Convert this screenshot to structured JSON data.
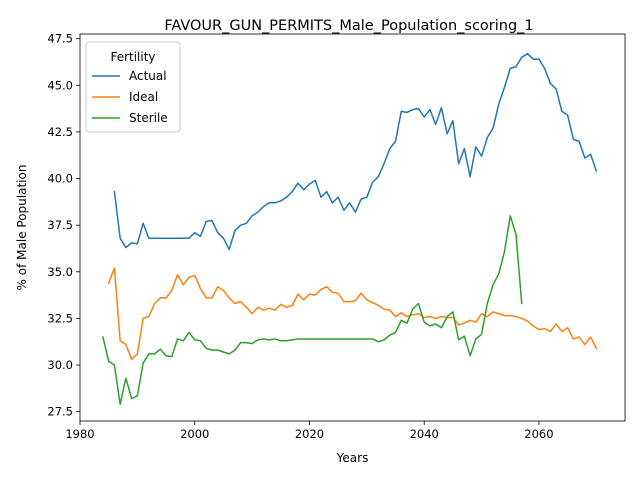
{
  "chart_data": {
    "type": "line",
    "title": "FAVOUR_GUN_PERMITS_Male_Population_scoring_1",
    "xlabel": "Years",
    "ylabel": "% of Male Population",
    "xlim": [
      1980,
      2075
    ],
    "ylim": [
      27.0,
      47.75
    ],
    "xticks": [
      1980,
      2000,
      2020,
      2040,
      2060
    ],
    "xtick_labels": [
      "1980",
      "2000",
      "2020",
      "2040",
      "2060"
    ],
    "yticks": [
      27.5,
      30.0,
      32.5,
      35.0,
      37.5,
      40.0,
      42.5,
      45.0,
      47.5
    ],
    "ytick_labels": [
      "27.5",
      "30.0",
      "32.5",
      "35.0",
      "37.5",
      "40.0",
      "42.5",
      "45.0",
      "47.5"
    ],
    "grid": false,
    "legend": {
      "title": "Fertility",
      "placement": "top-left"
    },
    "series": [
      {
        "name": "Actual",
        "color": "#1f77b4",
        "x": [
          1986,
          1987,
          1988,
          1989,
          1990,
          1991,
          1992,
          1993,
          1994,
          1995,
          1996,
          1997,
          1998,
          1999,
          2000,
          2001,
          2002,
          2003,
          2004,
          2005,
          2006,
          2007,
          2008,
          2009,
          2010,
          2011,
          2012,
          2013,
          2014,
          2015,
          2016,
          2017,
          2018,
          2019,
          2020,
          2021,
          2022,
          2023,
          2024,
          2025,
          2026,
          2027,
          2028,
          2029,
          2030,
          2031,
          2032,
          2033,
          2034,
          2035,
          2036,
          2037,
          2038,
          2039,
          2040,
          2041,
          2042,
          2043,
          2044,
          2045,
          2046,
          2047,
          2048,
          2049,
          2050,
          2051,
          2052,
          2053,
          2054,
          2055,
          2056,
          2057,
          2058,
          2059,
          2060,
          2061,
          2062,
          2063,
          2064,
          2065,
          2066,
          2067,
          2068,
          2069,
          2070
        ],
        "values": [
          39.3,
          36.8,
          36.3,
          36.55,
          36.5,
          37.6,
          36.8,
          36.8,
          36.8,
          36.8,
          36.8,
          36.8,
          36.8,
          36.8,
          37.1,
          36.9,
          37.7,
          37.75,
          37.1,
          36.8,
          36.2,
          37.2,
          37.5,
          37.6,
          38.0,
          38.2,
          38.5,
          38.7,
          38.7,
          38.8,
          39.0,
          39.3,
          39.75,
          39.4,
          39.7,
          39.9,
          39.0,
          39.3,
          38.7,
          39.0,
          38.3,
          38.7,
          38.2,
          38.9,
          39.0,
          39.8,
          40.1,
          40.8,
          41.6,
          42.0,
          43.6,
          43.55,
          43.7,
          43.75,
          43.3,
          43.7,
          42.9,
          43.8,
          42.4,
          43.1,
          40.8,
          41.6,
          40.1,
          41.7,
          41.2,
          42.2,
          42.7,
          44.0,
          44.9,
          45.9,
          46.0,
          46.5,
          46.7,
          46.4,
          46.4,
          45.9,
          45.1,
          44.8,
          43.6,
          43.4,
          42.1,
          42.0,
          41.1,
          41.3,
          40.4
        ]
      },
      {
        "name": "Ideal",
        "color": "#ff7f0e",
        "x": [
          1985,
          1986,
          1987,
          1988,
          1989,
          1990,
          1991,
          1992,
          1993,
          1994,
          1995,
          1996,
          1997,
          1998,
          1999,
          2000,
          2001,
          2002,
          2003,
          2004,
          2005,
          2006,
          2007,
          2008,
          2009,
          2010,
          2011,
          2012,
          2013,
          2014,
          2015,
          2016,
          2017,
          2018,
          2019,
          2020,
          2021,
          2022,
          2023,
          2024,
          2025,
          2026,
          2027,
          2028,
          2029,
          2030,
          2031,
          2032,
          2033,
          2034,
          2035,
          2036,
          2037,
          2038,
          2039,
          2040,
          2041,
          2042,
          2043,
          2044,
          2045,
          2046,
          2047,
          2048,
          2049,
          2050,
          2051,
          2052,
          2053,
          2054,
          2055,
          2056,
          2057,
          2058,
          2059,
          2060,
          2061,
          2062,
          2063,
          2064,
          2065,
          2066,
          2067,
          2068,
          2069,
          2070
        ],
        "values": [
          34.4,
          35.2,
          31.3,
          31.1,
          30.3,
          30.6,
          32.5,
          32.6,
          33.3,
          33.6,
          33.6,
          34.0,
          34.85,
          34.3,
          34.7,
          34.8,
          34.1,
          33.6,
          33.6,
          34.2,
          34.0,
          33.6,
          33.3,
          33.4,
          33.1,
          32.75,
          33.1,
          32.95,
          33.05,
          32.95,
          33.25,
          33.1,
          33.2,
          33.8,
          33.5,
          33.8,
          33.75,
          34.05,
          34.2,
          33.9,
          33.85,
          33.4,
          33.4,
          33.45,
          33.85,
          33.5,
          33.35,
          33.2,
          33.0,
          32.95,
          32.6,
          32.8,
          32.6,
          32.7,
          32.75,
          32.55,
          32.6,
          32.5,
          32.6,
          32.55,
          32.55,
          32.15,
          32.25,
          32.4,
          32.3,
          32.75,
          32.6,
          32.85,
          32.75,
          32.65,
          32.65,
          32.6,
          32.5,
          32.35,
          32.1,
          31.9,
          31.95,
          31.8,
          32.2,
          31.8,
          32.0,
          31.4,
          31.5,
          31.1,
          31.5,
          30.9
        ]
      },
      {
        "name": "Sterile",
        "color": "#2ca02c",
        "x": [
          1984,
          1985,
          1986,
          1987,
          1988,
          1989,
          1990,
          1991,
          1992,
          1993,
          1994,
          1995,
          1996,
          1997,
          1998,
          1999,
          2000,
          2001,
          2002,
          2003,
          2004,
          2005,
          2006,
          2007,
          2008,
          2009,
          2010,
          2011,
          2012,
          2013,
          2014,
          2015,
          2016,
          2017,
          2018,
          2019,
          2020,
          2021,
          2022,
          2023,
          2024,
          2025,
          2026,
          2027,
          2028,
          2029,
          2030,
          2031,
          2032,
          2033,
          2034,
          2035,
          2036,
          2037,
          2038,
          2039,
          2040,
          2041,
          2042,
          2043,
          2044,
          2045,
          2046,
          2047,
          2048,
          2049,
          2050,
          2051,
          2052,
          2053,
          2054,
          2055,
          2056,
          2057
        ],
        "values": [
          31.5,
          30.2,
          30.0,
          27.9,
          29.3,
          28.2,
          28.35,
          30.1,
          30.6,
          30.6,
          30.85,
          30.5,
          30.45,
          31.4,
          31.3,
          31.75,
          31.35,
          31.3,
          30.9,
          30.8,
          30.8,
          30.7,
          30.6,
          30.8,
          31.2,
          31.2,
          31.15,
          31.35,
          31.4,
          31.35,
          31.4,
          31.3,
          31.3,
          31.35,
          31.4,
          31.4,
          31.4,
          31.4,
          31.4,
          31.4,
          31.4,
          31.4,
          31.4,
          31.4,
          31.4,
          31.4,
          31.4,
          31.4,
          31.25,
          31.35,
          31.6,
          31.75,
          32.4,
          32.25,
          33.0,
          33.3,
          32.3,
          32.1,
          32.2,
          32.0,
          32.6,
          32.85,
          31.35,
          31.55,
          30.5,
          31.4,
          31.65,
          33.3,
          34.3,
          34.9,
          36.1,
          38.0,
          37.0,
          33.3
        ]
      }
    ]
  }
}
